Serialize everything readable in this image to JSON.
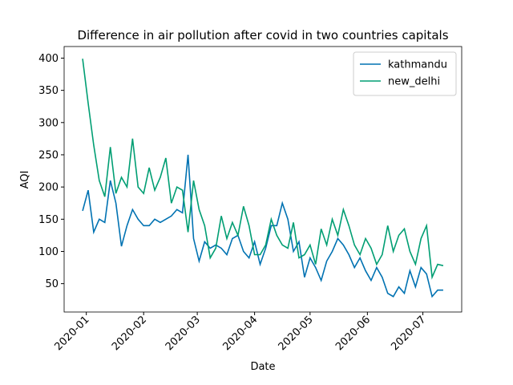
{
  "chart_data": {
    "type": "line",
    "title": "Difference in air pollution after covid in two countries capitals",
    "xlabel": "Date",
    "ylabel": "AQI",
    "x": [
      "2019-12-30",
      "2020-01-02",
      "2020-01-05",
      "2020-01-08",
      "2020-01-11",
      "2020-01-14",
      "2020-01-17",
      "2020-01-20",
      "2020-01-23",
      "2020-01-26",
      "2020-01-29",
      "2020-02-01",
      "2020-02-04",
      "2020-02-07",
      "2020-02-10",
      "2020-02-13",
      "2020-02-16",
      "2020-02-19",
      "2020-02-22",
      "2020-02-25",
      "2020-02-28",
      "2020-03-02",
      "2020-03-05",
      "2020-03-08",
      "2020-03-11",
      "2020-03-14",
      "2020-03-17",
      "2020-03-20",
      "2020-03-23",
      "2020-03-26",
      "2020-03-29",
      "2020-04-01",
      "2020-04-04",
      "2020-04-07",
      "2020-04-10",
      "2020-04-13",
      "2020-04-16",
      "2020-04-19",
      "2020-04-22",
      "2020-04-25",
      "2020-04-28",
      "2020-05-01",
      "2020-05-04",
      "2020-05-07",
      "2020-05-10",
      "2020-05-13",
      "2020-05-16",
      "2020-05-19",
      "2020-05-22",
      "2020-05-25",
      "2020-05-28",
      "2020-05-31",
      "2020-06-03",
      "2020-06-06",
      "2020-06-09",
      "2020-06-12",
      "2020-06-15",
      "2020-06-18",
      "2020-06-21",
      "2020-06-24",
      "2020-06-27",
      "2020-06-30",
      "2020-07-03",
      "2020-07-06",
      "2020-07-09",
      "2020-07-12"
    ],
    "series": [
      {
        "name": "kathmandu",
        "color": "#0072b2",
        "values": [
          163,
          195,
          130,
          150,
          145,
          210,
          175,
          108,
          140,
          165,
          150,
          140,
          140,
          150,
          145,
          150,
          155,
          165,
          160,
          250,
          120,
          85,
          115,
          105,
          110,
          105,
          95,
          120,
          125,
          100,
          90,
          115,
          80,
          105,
          140,
          140,
          175,
          150,
          100,
          115,
          60,
          90,
          75,
          55,
          85,
          100,
          120,
          110,
          95,
          75,
          90,
          70,
          55,
          75,
          60,
          35,
          30,
          45,
          35,
          70,
          45,
          75,
          65,
          30,
          40,
          40
        ]
      },
      {
        "name": "new_delhi",
        "color": "#009e73",
        "values": [
          399,
          330,
          265,
          210,
          185,
          262,
          190,
          215,
          200,
          275,
          200,
          190,
          230,
          195,
          215,
          245,
          175,
          200,
          195,
          130,
          210,
          165,
          140,
          90,
          105,
          155,
          120,
          145,
          125,
          170,
          140,
          95,
          95,
          110,
          150,
          125,
          110,
          105,
          145,
          90,
          95,
          110,
          80,
          135,
          110,
          150,
          125,
          165,
          140,
          110,
          95,
          120,
          105,
          80,
          95,
          140,
          100,
          125,
          135,
          100,
          80,
          120,
          140,
          60,
          80,
          78
        ]
      }
    ],
    "xlim": [
      "2019-12-20",
      "2020-07-22"
    ],
    "xticks": [
      {
        "value": "2020-01-01",
        "label": "2020-01"
      },
      {
        "value": "2020-02-01",
        "label": "2020-02"
      },
      {
        "value": "2020-03-01",
        "label": "2020-03"
      },
      {
        "value": "2020-04-01",
        "label": "2020-04"
      },
      {
        "value": "2020-05-01",
        "label": "2020-05"
      },
      {
        "value": "2020-06-01",
        "label": "2020-06"
      },
      {
        "value": "2020-07-01",
        "label": "2020-07"
      }
    ],
    "ylim": [
      6,
      418
    ],
    "yticks": [
      50,
      100,
      150,
      200,
      250,
      300,
      350,
      400
    ],
    "legend": "upper right",
    "grid": false
  }
}
